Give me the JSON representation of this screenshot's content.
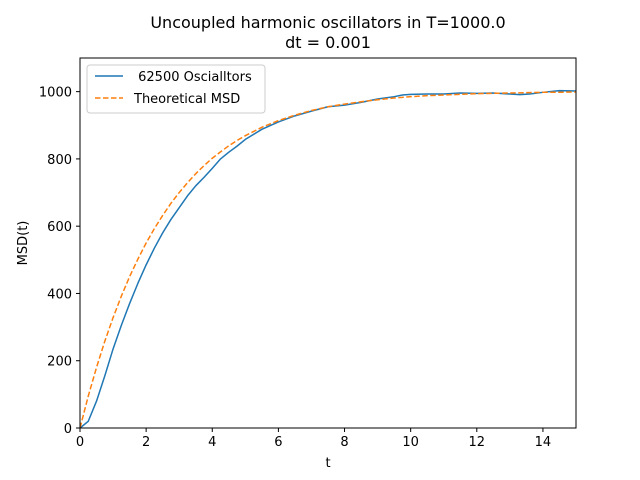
{
  "chart_data": {
    "type": "line",
    "title": "Uncoupled harmonic oscillators in T=1000.0",
    "subtitle": "dt = 0.001",
    "xlabel": "t",
    "ylabel": "MSD(t)",
    "xlim": [
      0,
      15
    ],
    "ylim": [
      0,
      1100
    ],
    "xticks": [
      0,
      2,
      4,
      6,
      8,
      10,
      12,
      14
    ],
    "yticks": [
      0,
      200,
      400,
      600,
      800,
      1000
    ],
    "grid": false,
    "legend_position": "top-left",
    "series": [
      {
        "name": " 62500 Oscialltors",
        "color": "#1f77b4",
        "style": "solid",
        "x": [
          0,
          0.25,
          0.5,
          0.75,
          1.0,
          1.25,
          1.5,
          1.75,
          2.0,
          2.25,
          2.5,
          2.75,
          3.0,
          3.25,
          3.5,
          3.75,
          4.0,
          4.25,
          4.5,
          4.75,
          5.0,
          5.5,
          6.0,
          6.5,
          7.0,
          7.5,
          8.0,
          8.5,
          9.0,
          9.5,
          9.75,
          10.0,
          10.5,
          11.0,
          11.5,
          12.0,
          12.5,
          13.0,
          13.3,
          13.6,
          14.0,
          14.5,
          15.0
        ],
        "y": [
          0,
          20,
          80,
          155,
          235,
          305,
          370,
          430,
          485,
          535,
          580,
          620,
          655,
          690,
          720,
          745,
          772,
          800,
          820,
          838,
          858,
          888,
          910,
          928,
          942,
          955,
          960,
          968,
          978,
          985,
          990,
          992,
          993,
          993,
          996,
          995,
          996,
          993,
          991,
          993,
          998,
          1003,
          1002
        ]
      },
      {
        "name": "Theoretical MSD",
        "color": "#ff7f0e",
        "style": "dashed",
        "x": [
          0,
          0.25,
          0.5,
          0.75,
          1.0,
          1.25,
          1.5,
          1.75,
          2.0,
          2.25,
          2.5,
          2.75,
          3.0,
          3.25,
          3.5,
          3.75,
          4.0,
          4.25,
          4.5,
          4.75,
          5.0,
          5.5,
          6.0,
          6.5,
          7.0,
          7.5,
          8.0,
          8.5,
          9.0,
          9.5,
          10.0,
          10.5,
          11.0,
          11.5,
          12.0,
          12.5,
          13.0,
          13.5,
          14.0,
          14.5,
          15.0
        ],
        "y": [
          0,
          95,
          180,
          258,
          328,
          392,
          450,
          502,
          550,
          593,
          632,
          668,
          700,
          729,
          756,
          780,
          802,
          821,
          839,
          855,
          869,
          894,
          914,
          930,
          944,
          955,
          963,
          970,
          976,
          981,
          985,
          988,
          990,
          992,
          994,
          995,
          996,
          997,
          998,
          998,
          999
        ]
      }
    ]
  }
}
